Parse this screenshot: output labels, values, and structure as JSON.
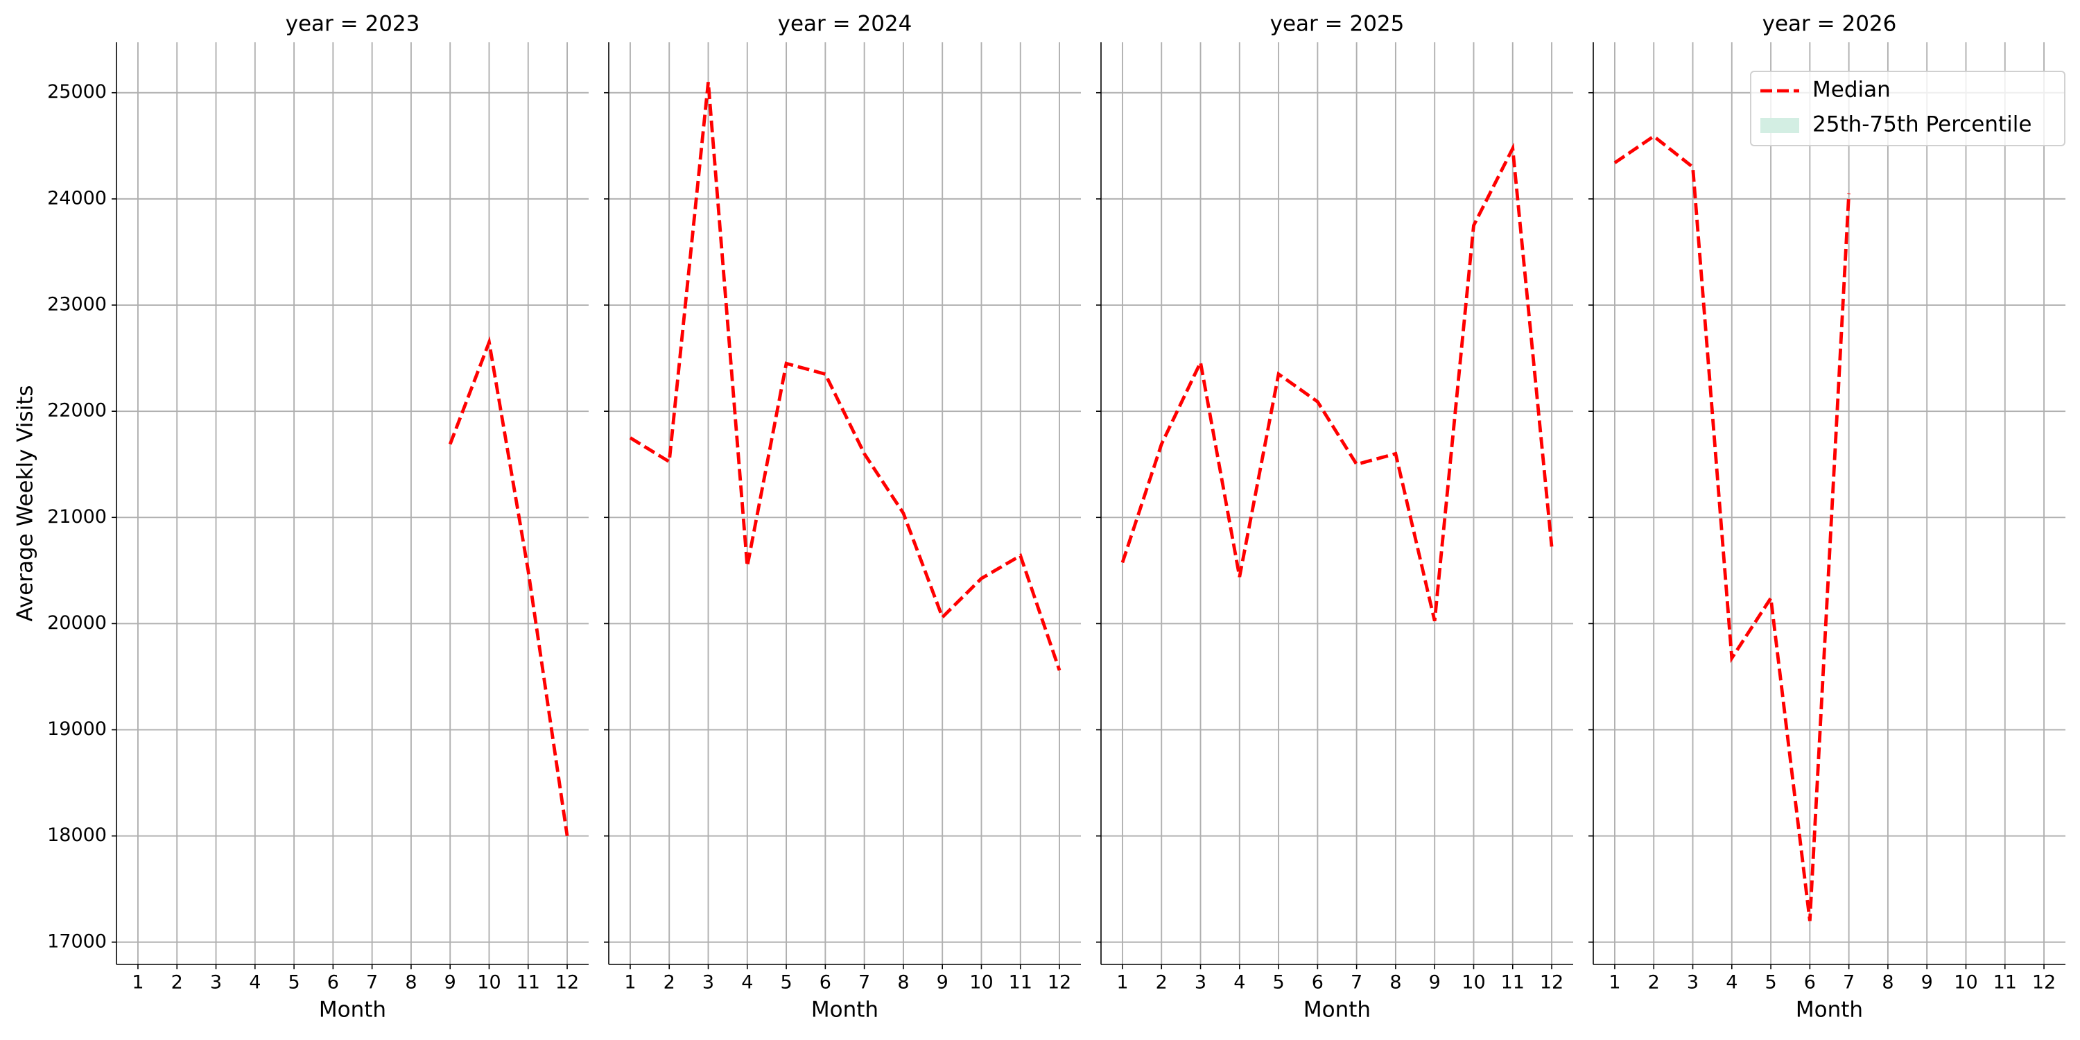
{
  "chart_data": [
    {
      "type": "line",
      "title": "year = 2023",
      "xlabel": "Month",
      "ylabel": "Average Weekly Visits",
      "x": [
        1,
        2,
        3,
        4,
        5,
        6,
        7,
        8,
        9,
        10,
        11,
        12
      ],
      "series": [
        {
          "name": "Median",
          "color": "#ff0000",
          "values": [
            null,
            null,
            null,
            null,
            null,
            null,
            null,
            null,
            21690,
            22650,
            20500,
            18000
          ]
        }
      ],
      "xlim": [
        0.45,
        12.55
      ],
      "xticks": [
        1,
        2,
        3,
        4,
        5,
        6,
        7,
        8,
        9,
        10,
        11,
        12
      ],
      "ylim": [
        16790,
        25475
      ],
      "yticks": [
        17000,
        18000,
        19000,
        20000,
        21000,
        22000,
        23000,
        24000,
        25000
      ],
      "grid": true
    },
    {
      "type": "line",
      "title": "year = 2024",
      "xlabel": "Month",
      "x": [
        1,
        2,
        3,
        4,
        5,
        6,
        7,
        8,
        9,
        10,
        11,
        12
      ],
      "series": [
        {
          "name": "Median",
          "color": "#ff0000",
          "values": [
            21750,
            21525,
            25100,
            20540,
            22450,
            22350,
            21600,
            21040,
            20060,
            20425,
            20640,
            19560
          ]
        }
      ],
      "xlim": [
        0.45,
        12.55
      ],
      "xticks": [
        1,
        2,
        3,
        4,
        5,
        6,
        7,
        8,
        9,
        10,
        11,
        12
      ],
      "ylim": [
        16790,
        25475
      ],
      "yticks": [
        17000,
        18000,
        19000,
        20000,
        21000,
        22000,
        23000,
        24000,
        25000
      ],
      "grid": true
    },
    {
      "type": "line",
      "title": "year = 2025",
      "xlabel": "Month",
      "x": [
        1,
        2,
        3,
        4,
        5,
        6,
        7,
        8,
        9,
        10,
        11,
        12
      ],
      "series": [
        {
          "name": "Median",
          "color": "#ff0000",
          "values": [
            20575,
            21690,
            22460,
            20440,
            22350,
            22090,
            21500,
            21600,
            20025,
            23750,
            24475,
            20725
          ]
        }
      ],
      "xlim": [
        0.45,
        12.55
      ],
      "xticks": [
        1,
        2,
        3,
        4,
        5,
        6,
        7,
        8,
        9,
        10,
        11,
        12
      ],
      "ylim": [
        16790,
        25475
      ],
      "yticks": [
        17000,
        18000,
        19000,
        20000,
        21000,
        22000,
        23000,
        24000,
        25000
      ],
      "grid": true
    },
    {
      "type": "line",
      "title": "year = 2026",
      "xlabel": "Month",
      "x": [
        1,
        2,
        3,
        4,
        5,
        6,
        7,
        8,
        9,
        10,
        11,
        12
      ],
      "series": [
        {
          "name": "Median",
          "color": "#ff0000",
          "values": [
            24340,
            24590,
            24300,
            19675,
            20240,
            17200,
            24050,
            null,
            null,
            null,
            null,
            null
          ]
        }
      ],
      "xlim": [
        0.45,
        12.55
      ],
      "xticks": [
        1,
        2,
        3,
        4,
        5,
        6,
        7,
        8,
        9,
        10,
        11,
        12
      ],
      "ylim": [
        16790,
        25475
      ],
      "yticks": [
        17000,
        18000,
        19000,
        20000,
        21000,
        22000,
        23000,
        24000,
        25000
      ],
      "grid": true,
      "legend": {
        "position": "upper right",
        "entries": [
          {
            "name": "Median",
            "color": "#ff0000",
            "kind": "line"
          },
          {
            "name": "25th-75th Percentile",
            "color": "#d3eee3",
            "kind": "patch"
          }
        ]
      }
    }
  ]
}
